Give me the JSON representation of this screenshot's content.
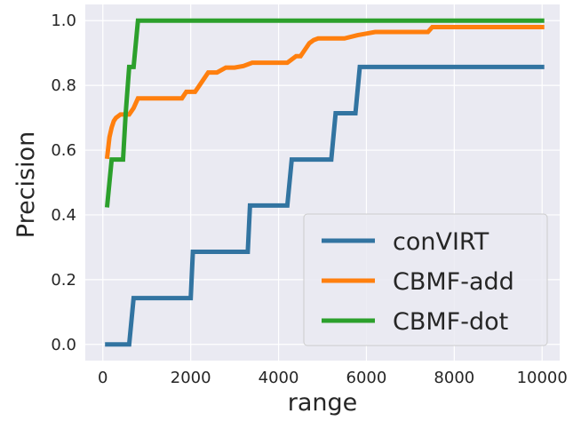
{
  "chart_data": {
    "type": "line",
    "xlabel": "range",
    "ylabel": "Precision",
    "xlim": [
      -400,
      10400
    ],
    "ylim": [
      -0.05,
      1.05
    ],
    "x_ticks": [
      0,
      2000,
      4000,
      6000,
      8000,
      10000
    ],
    "y_ticks": [
      0.0,
      0.2,
      0.4,
      0.6,
      0.8,
      1.0
    ],
    "x_tick_labels": [
      "0",
      "2000",
      "4000",
      "6000",
      "8000",
      "10000"
    ],
    "y_tick_labels": [
      "0.0",
      "0.2",
      "0.4",
      "0.6",
      "0.8",
      "1.0"
    ],
    "grid": true,
    "background": "#eaeaf2",
    "legend_position": "lower-right",
    "series": [
      {
        "name": "conVIRT",
        "color": "#3274a1",
        "x": [
          100,
          600,
          700,
          2000,
          2050,
          3300,
          3350,
          4200,
          4300,
          5200,
          5300,
          5750,
          5850,
          10000
        ],
        "y": [
          0.0,
          0.0,
          0.143,
          0.143,
          0.286,
          0.286,
          0.429,
          0.429,
          0.571,
          0.571,
          0.714,
          0.714,
          0.857,
          0.857
        ]
      },
      {
        "name": "CBMF-add",
        "color": "#ff7f0e",
        "x": [
          100,
          150,
          200,
          250,
          300,
          400,
          500,
          600,
          700,
          800,
          900,
          1000,
          1800,
          1900,
          2100,
          2200,
          2300,
          2400,
          2600,
          2800,
          3000,
          3200,
          3400,
          4200,
          4400,
          4500,
          4600,
          4700,
          4800,
          4900,
          5000,
          5500,
          5800,
          6000,
          6200,
          6500,
          7000,
          7400,
          7500,
          10000
        ],
        "y": [
          0.58,
          0.64,
          0.67,
          0.69,
          0.7,
          0.71,
          0.71,
          0.71,
          0.73,
          0.76,
          0.76,
          0.76,
          0.76,
          0.78,
          0.78,
          0.8,
          0.82,
          0.84,
          0.84,
          0.855,
          0.855,
          0.86,
          0.87,
          0.87,
          0.89,
          0.89,
          0.91,
          0.93,
          0.94,
          0.945,
          0.945,
          0.945,
          0.955,
          0.96,
          0.965,
          0.965,
          0.965,
          0.965,
          0.98,
          0.98
        ]
      },
      {
        "name": "CBMF-dot",
        "color": "#2ca02c",
        "x": [
          100,
          200,
          280,
          460,
          520,
          600,
          700,
          800,
          850,
          10000
        ],
        "y": [
          0.43,
          0.571,
          0.571,
          0.571,
          0.714,
          0.857,
          0.857,
          1.0,
          1.0,
          1.0
        ]
      }
    ]
  }
}
